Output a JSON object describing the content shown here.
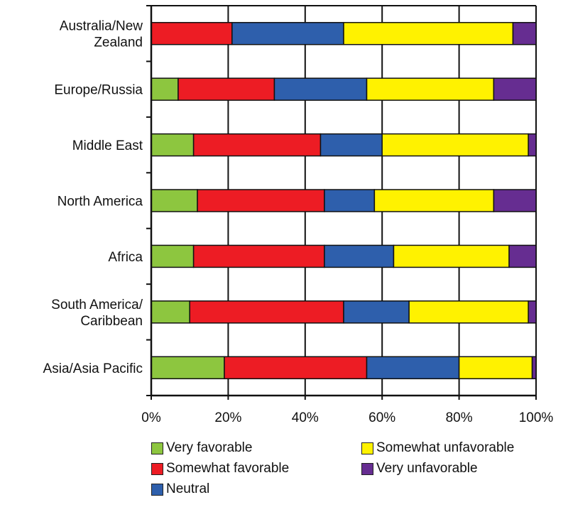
{
  "chart_data": {
    "type": "bar",
    "orientation": "horizontal",
    "stacked": true,
    "categories": [
      [
        "Australia/New",
        "Zealand"
      ],
      [
        "Europe/Russia"
      ],
      [
        "Middle East"
      ],
      [
        "North America"
      ],
      [
        "Africa"
      ],
      [
        "South America/",
        "Caribbean"
      ],
      [
        "Asia/Asia Pacific"
      ]
    ],
    "series": [
      {
        "name": "Very favorable",
        "color": "#8dc63f",
        "values": [
          0,
          7,
          11,
          12,
          11,
          10,
          19
        ]
      },
      {
        "name": "Somewhat favorable",
        "color": "#ed1c24",
        "values": [
          21,
          25,
          33,
          33,
          34,
          40,
          37
        ]
      },
      {
        "name": "Neutral",
        "color": "#2e5fac",
        "values": [
          29,
          24,
          16,
          13,
          18,
          17,
          24
        ]
      },
      {
        "name": "Somewhat unfavorable",
        "color": "#fff200",
        "values": [
          44,
          33,
          38,
          31,
          30,
          31,
          19
        ]
      },
      {
        "name": "Very unfavorable",
        "color": "#662d91",
        "values": [
          6,
          11,
          2,
          11,
          7,
          2,
          1
        ]
      }
    ],
    "xlim": [
      0,
      100
    ],
    "xticks": [
      "0%",
      "20%",
      "40%",
      "60%",
      "80%",
      "100%"
    ],
    "grid": "vertical",
    "legend_placement": "bottom"
  }
}
